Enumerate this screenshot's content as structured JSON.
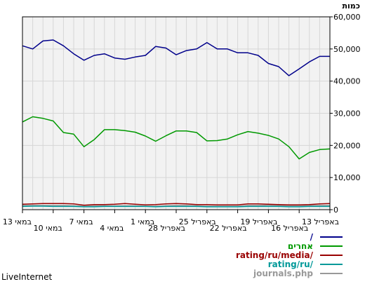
{
  "chart_data": {
    "type": "line",
    "ylabel": "כמות",
    "ylim": [
      0,
      60000
    ],
    "yticks": [
      "0",
      "10,000",
      "20,000",
      "30,000",
      "40,000",
      "50,000",
      "60,000"
    ],
    "grid": true,
    "x": [
      "13 במאי",
      "12 במאי",
      "11 במאי",
      "10 במאי",
      "9 במאי",
      "8 במאי",
      "7 במאי",
      "6 במאי",
      "5 במאי",
      "4 במאי",
      "3 במאי",
      "2 במאי",
      "1 במאי",
      "30 באפריל",
      "29 באפריל",
      "28 באפריל",
      "27 באפריל",
      "26 באפריל",
      "25 באפריל",
      "24 באפריל",
      "23 באפריל",
      "22 באפריל",
      "21 באפריל",
      "20 באפריל",
      "19 באפריל",
      "18 באפריל",
      "17 באפריל",
      "16 באפריל",
      "15 באפריל",
      "14 באפריל",
      "13 באפריל"
    ],
    "xtick_labels_row1": [
      "13 במאי",
      "7 במאי",
      "1 במאי",
      "25 באפריל",
      "19 באפריל",
      "13 באפריל"
    ],
    "xtick_labels_row2": [
      "10 במאי",
      "4 במאי",
      "28 באפריל",
      "22 באפריל",
      "16 באפריל"
    ],
    "series": [
      {
        "name": "/",
        "color": "#00008b",
        "values": [
          51000,
          50000,
          52500,
          52800,
          51000,
          48500,
          46500,
          48000,
          48500,
          47200,
          46800,
          47500,
          48000,
          50800,
          50300,
          48200,
          49500,
          50000,
          52000,
          50000,
          50000,
          48800,
          48800,
          48000,
          45500,
          44500,
          41700,
          43800,
          46000,
          47700,
          47700
        ]
      },
      {
        "name": "אחרים",
        "color": "#009900",
        "values": [
          27300,
          28900,
          28400,
          27600,
          24000,
          23500,
          19600,
          21800,
          24900,
          24900,
          24600,
          24100,
          22900,
          21300,
          23000,
          24500,
          24500,
          24000,
          21400,
          21500,
          22000,
          23300,
          24300,
          23800,
          23100,
          22000,
          19600,
          15800,
          17800,
          18700,
          18900
        ]
      },
      {
        "name": "rating/ru/media/",
        "color": "#990000",
        "values": [
          1700,
          1800,
          1900,
          1900,
          1900,
          1800,
          1400,
          1600,
          1600,
          1700,
          1900,
          1700,
          1500,
          1600,
          1800,
          1900,
          1800,
          1600,
          1600,
          1500,
          1500,
          1500,
          1800,
          1800,
          1700,
          1600,
          1500,
          1500,
          1600,
          1800,
          1900
        ]
      },
      {
        "name": "rating/ru/",
        "color": "#009999",
        "values": [
          1000,
          1100,
          1100,
          1000,
          1000,
          1000,
          900,
          900,
          1000,
          1000,
          1000,
          1000,
          1000,
          900,
          1000,
          1000,
          1000,
          1000,
          900,
          900,
          900,
          900,
          1000,
          1000,
          1000,
          1000,
          900,
          900,
          1000,
          1000,
          1000
        ]
      },
      {
        "name": "journals.php",
        "color": "#999999",
        "values": [
          1300,
          1300,
          1300,
          1300,
          1300,
          1200,
          1100,
          1200,
          1200,
          1200,
          1200,
          1200,
          1100,
          1100,
          1200,
          1300,
          1300,
          1200,
          1100,
          1100,
          1100,
          1100,
          1300,
          1300,
          1400,
          1300,
          1200,
          1200,
          1300,
          1300,
          1300
        ]
      }
    ],
    "legend_placement": "bottom"
  },
  "brand": "LiveInternet"
}
